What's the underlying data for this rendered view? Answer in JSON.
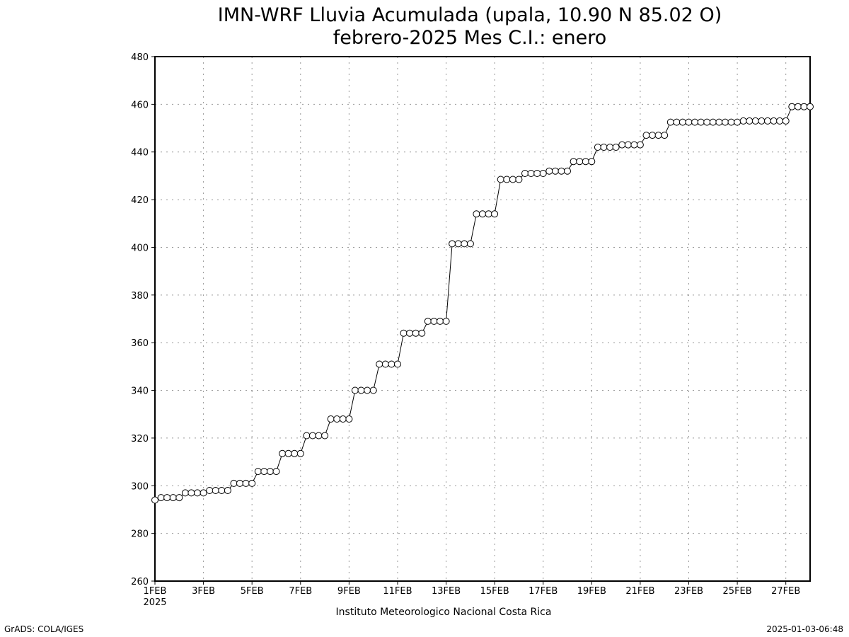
{
  "chart_data": {
    "type": "line",
    "title": "IMN-WRF  Lluvia Acumulada (upala, 10.90  N 85.02  O)",
    "subtitle": "febrero-2025 Mes C.I.: enero",
    "footer": "Instituto Meteorologico Nacional Costa Rica",
    "xlabel": "",
    "ylabel": "",
    "ylim": [
      260,
      480
    ],
    "yticks": [
      260,
      280,
      300,
      320,
      340,
      360,
      380,
      400,
      420,
      440,
      460,
      480
    ],
    "xlim": [
      1,
      28
    ],
    "xticks": [
      {
        "day": 1,
        "label": "1FEB",
        "sublabel": "2025"
      },
      {
        "day": 3,
        "label": "3FEB"
      },
      {
        "day": 5,
        "label": "5FEB"
      },
      {
        "day": 7,
        "label": "7FEB"
      },
      {
        "day": 9,
        "label": "9FEB"
      },
      {
        "day": 11,
        "label": "11FEB"
      },
      {
        "day": 13,
        "label": "13FEB"
      },
      {
        "day": 15,
        "label": "15FEB"
      },
      {
        "day": 17,
        "label": "17FEB"
      },
      {
        "day": 19,
        "label": "19FEB"
      },
      {
        "day": 21,
        "label": "21FEB"
      },
      {
        "day": 23,
        "label": "23FEB"
      },
      {
        "day": 25,
        "label": "25FEB"
      },
      {
        "day": 27,
        "label": "27FEB"
      }
    ],
    "grid": true,
    "marker": "open-circle",
    "colors": {
      "line": "#000000",
      "grid": "#999999",
      "marker_fill": "#ffffff"
    },
    "series": [
      {
        "x_unit": "day of February 2025 (6-hourly steps)",
        "x": [
          1,
          1.25,
          1.5,
          1.75,
          2,
          2.25,
          2.5,
          2.75,
          3,
          3.25,
          3.5,
          3.75,
          4,
          4.25,
          4.5,
          4.75,
          5,
          5.25,
          5.5,
          5.75,
          6,
          6.25,
          6.5,
          6.75,
          7,
          7.25,
          7.5,
          7.75,
          8,
          8.25,
          8.5,
          8.75,
          9,
          9.25,
          9.5,
          9.75,
          10,
          10.25,
          10.5,
          10.75,
          11,
          11.25,
          11.5,
          11.75,
          12,
          12.25,
          12.5,
          12.75,
          13,
          13.25,
          13.5,
          13.75,
          14,
          14.25,
          14.5,
          14.75,
          15,
          15.25,
          15.5,
          15.75,
          16,
          16.25,
          16.5,
          16.75,
          17,
          17.25,
          17.5,
          17.75,
          18,
          18.25,
          18.5,
          18.75,
          19,
          19.25,
          19.5,
          19.75,
          20,
          20.25,
          20.5,
          20.75,
          21,
          21.25,
          21.5,
          21.75,
          22,
          22.25,
          22.5,
          22.75,
          23,
          23.25,
          23.5,
          23.75,
          24,
          24.25,
          24.5,
          24.75,
          25,
          25.25,
          25.5,
          25.75,
          26,
          26.25,
          26.5,
          26.75,
          27,
          27.25,
          27.5,
          27.75,
          28
        ],
        "values": [
          294,
          295,
          295,
          295,
          295,
          297,
          297,
          297,
          297,
          298,
          298,
          298,
          298,
          301,
          301,
          301,
          301,
          306,
          306,
          306,
          306,
          313.5,
          313.5,
          313.5,
          313.5,
          321,
          321,
          321,
          321,
          328,
          328,
          328,
          328,
          340,
          340,
          340,
          340,
          351,
          351,
          351,
          351,
          364,
          364,
          364,
          364,
          369,
          369,
          369,
          369,
          401.5,
          401.5,
          401.5,
          401.5,
          414,
          414,
          414,
          414,
          428.5,
          428.5,
          428.5,
          428.5,
          431,
          431,
          431,
          431,
          432,
          432,
          432,
          432,
          436,
          436,
          436,
          436,
          442,
          442,
          442,
          442,
          443,
          443,
          443,
          443,
          447,
          447,
          447,
          447,
          452.5,
          452.5,
          452.5,
          452.5,
          452.5,
          452.5,
          452.5,
          452.5,
          452.5,
          452.5,
          452.5,
          452.5,
          453,
          453,
          453,
          453,
          453,
          453,
          453,
          453,
          459,
          459,
          459,
          459
        ]
      }
    ]
  },
  "footer_left": "GrADS: COLA/IGES",
  "footer_right": "2025-01-03-06:48"
}
